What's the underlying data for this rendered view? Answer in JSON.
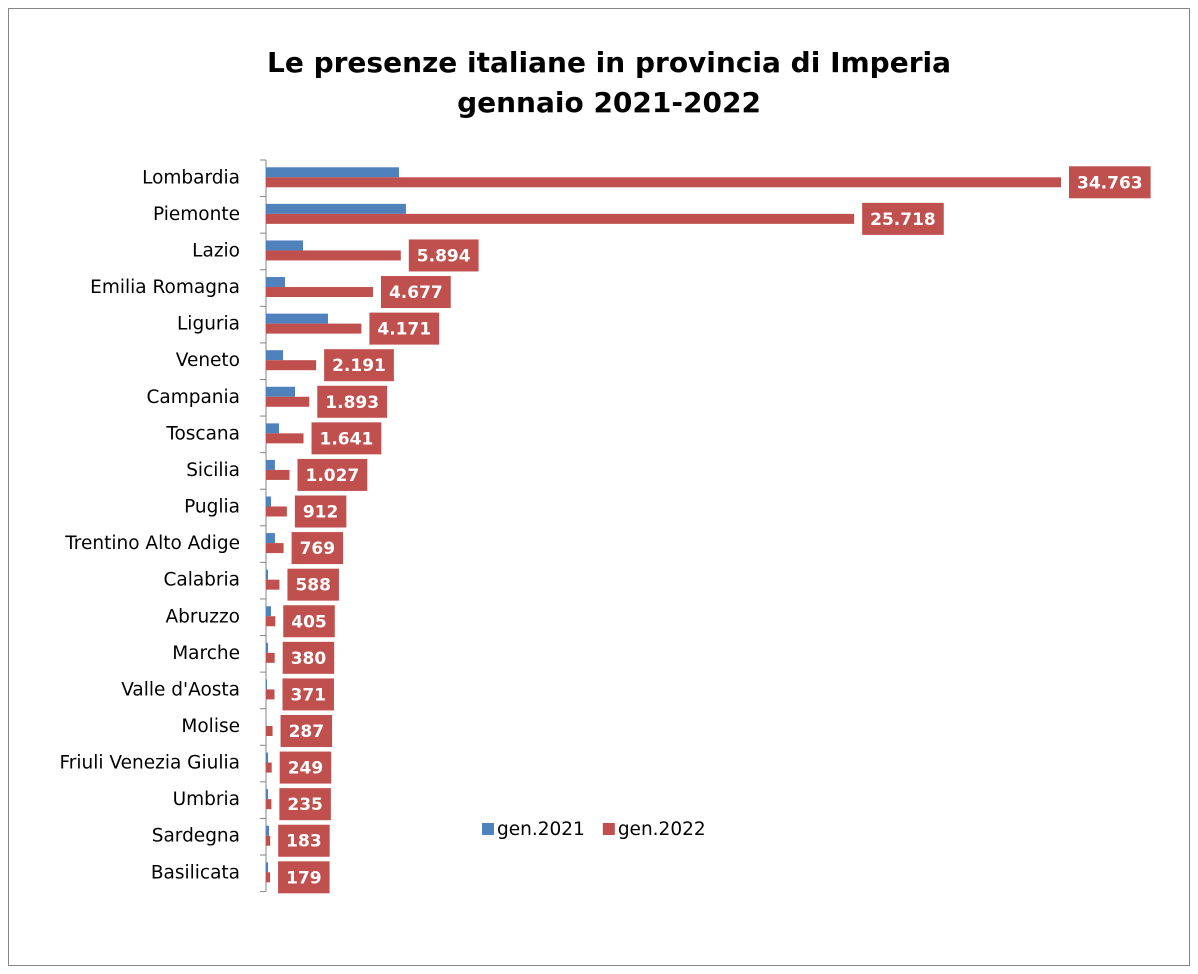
{
  "chart_data": {
    "type": "hbar",
    "title": [
      "Le presenze italiane in provincia di Imperia",
      "gennaio 2021-2022"
    ],
    "categories": [
      "Lombardia",
      "Piemonte",
      "Lazio",
      "Emilia Romagna",
      "Liguria",
      "Veneto",
      "Campania",
      "Toscana",
      "Sicilia",
      "Puglia",
      "Trentino Alto Adige",
      "Calabria",
      "Abruzzo",
      "Marche",
      "Valle d'Aosta",
      "Molise",
      "Friuli Venezia Giulia",
      "Umbria",
      "Sardegna",
      "Basilicata"
    ],
    "series": [
      {
        "name": "gen.2021",
        "color": "#4f81bd",
        "values": [
          5815,
          6120,
          1620,
          830,
          2710,
          745,
          1270,
          570,
          390,
          220,
          390,
          90,
          220,
          90,
          45,
          20,
          90,
          90,
          130,
          90
        ]
      },
      {
        "name": "gen.2022",
        "color": "#c0504d",
        "values": [
          34763,
          25718,
          5894,
          4677,
          4171,
          2191,
          1893,
          1641,
          1027,
          912,
          769,
          588,
          405,
          380,
          371,
          287,
          249,
          235,
          183,
          179
        ],
        "value_labels": [
          "34.763",
          "25.718",
          "5.894",
          "4.677",
          "4.171",
          "2.191",
          "1.893",
          "1.641",
          "1.027",
          "912",
          "769",
          "588",
          "405",
          "380",
          "371",
          "287",
          "249",
          "235",
          "183",
          "179"
        ]
      }
    ],
    "legend": "bottom"
  }
}
